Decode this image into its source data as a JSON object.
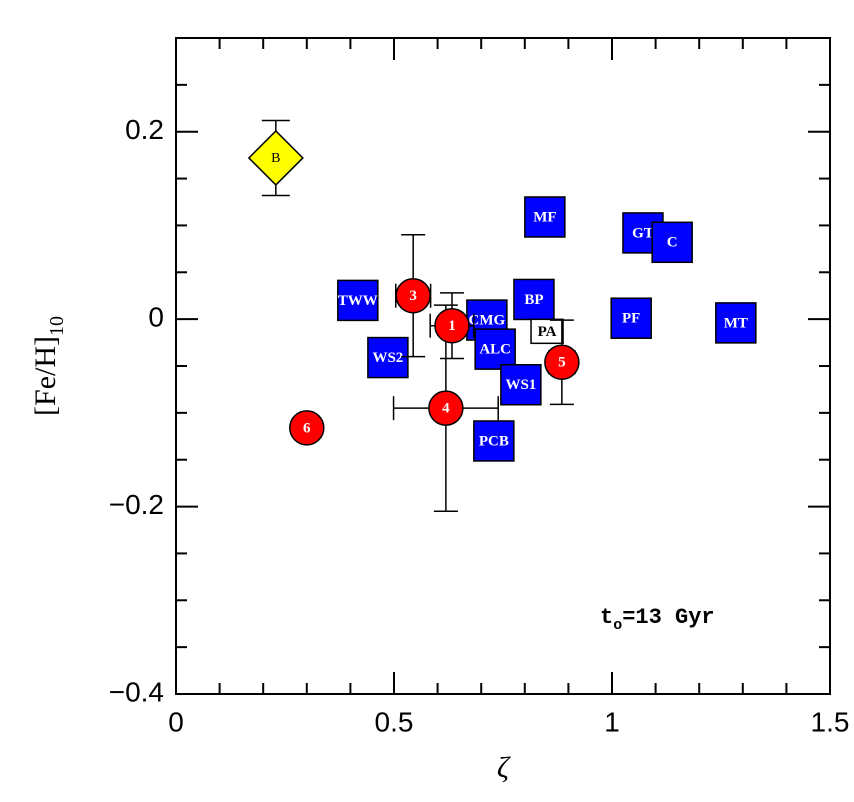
{
  "chart_data": {
    "type": "scatter",
    "xlabel": "ζ",
    "ylabel": {
      "text": "[Fe/H]",
      "sub": "10"
    },
    "annotation": {
      "text": "t",
      "sub": "o",
      "rest": "=13 Gyr"
    },
    "xlim": [
      0,
      1.5
    ],
    "ylim": [
      -0.4,
      0.3
    ],
    "xticks": [
      0,
      0.5,
      1,
      1.5
    ],
    "yticks": [
      {
        "value": -0.4,
        "label": "−0.4"
      },
      {
        "value": -0.2,
        "label": "−0.2"
      },
      0,
      0.2
    ],
    "xminor": [
      0.1,
      0.2,
      0.3,
      0.4,
      0.6,
      0.7,
      0.8,
      0.9,
      1.1,
      1.2,
      1.3,
      1.4
    ],
    "yminor": [
      -0.35,
      -0.3,
      -0.25,
      -0.15,
      -0.1,
      -0.05,
      0.05,
      0.1,
      0.15,
      0.25
    ],
    "squares": {
      "labels": [
        "TWW",
        "WS2",
        "MF",
        "GT",
        "C",
        "PF",
        "MT",
        "BP",
        "CMG",
        "ALC",
        "PCB",
        "WS1",
        "PA"
      ],
      "x": [
        0.417,
        0.486,
        0.846,
        1.071,
        1.138,
        1.044,
        1.284,
        0.821,
        0.713,
        0.732,
        0.729,
        0.791,
        0.851
      ],
      "y": [
        0.02,
        -0.041,
        0.109,
        0.092,
        0.082,
        0.001,
        -0.004,
        0.021,
        -0.001,
        -0.032,
        -0.13,
        -0.07,
        -0.013
      ],
      "colors": [
        "#0000ff",
        "#0000ff",
        "#0000ff",
        "#0000ff",
        "#0000ff",
        "#0000ff",
        "#0000ff",
        "#0000ff",
        "#0000ff",
        "#0000ff",
        "#0000ff",
        "#0000ff",
        "#ffffff"
      ]
    },
    "circles": {
      "color": "#ff0000",
      "labels": [
        "1",
        "3",
        "4",
        "5",
        "6"
      ],
      "x": [
        0.633,
        0.544,
        0.619,
        0.885,
        0.3
      ],
      "y": [
        -0.007,
        0.025,
        -0.095,
        -0.046,
        -0.116
      ],
      "xerr": [
        0.05,
        0.04,
        0.12,
        0.03,
        null
      ],
      "yerr": [
        0.035,
        0.065,
        0.11,
        0.045,
        null
      ]
    },
    "diamond": {
      "color": "#ffff00",
      "label": "B",
      "x": 0.229,
      "y": 0.172,
      "yerr": 0.04
    }
  }
}
